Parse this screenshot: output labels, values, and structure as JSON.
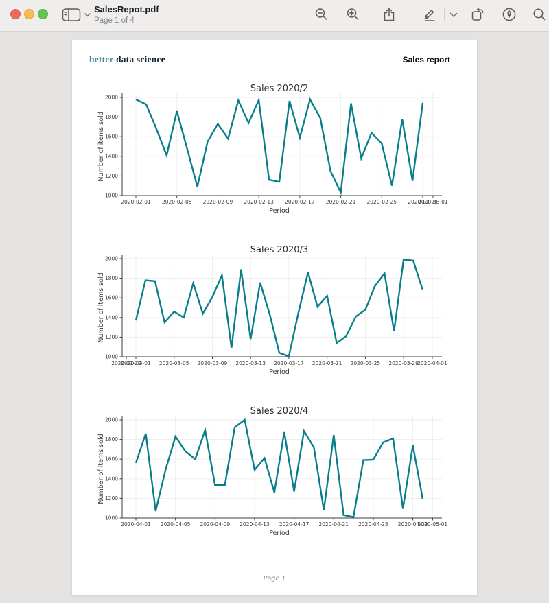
{
  "window": {
    "title": "SalesRepot.pdf",
    "subtitle": "Page 1 of 4"
  },
  "toolbar": {
    "icons": [
      "sidebar-toggle",
      "zoom-out",
      "zoom-in",
      "share",
      "markup-pencil",
      "markup-options-chevron",
      "rotate",
      "sign",
      "search"
    ]
  },
  "page": {
    "logo_better": "better",
    "logo_rest": "data science",
    "header_right": "Sales report",
    "footer": "Page 1"
  },
  "colors": {
    "line": "#087E8B",
    "logo_teal": "#4e849b",
    "logo_dark": "#10222e"
  },
  "chart_data": [
    {
      "type": "line",
      "title": "Sales 2020/2",
      "xlabel": "Period",
      "ylabel": "Number of items sold",
      "ylim": [
        1000,
        2000
      ],
      "yticks": [
        1000,
        1200,
        1400,
        1600,
        1800,
        2000
      ],
      "grid": true,
      "legend": "none",
      "line_color": "#087E8B",
      "x_start": "2020-02-01",
      "values": [
        1980,
        1930,
        1680,
        1410,
        1860,
        1480,
        1090,
        1550,
        1730,
        1580,
        1970,
        1740,
        1975,
        1160,
        1140,
        1965,
        1590,
        1980,
        1790,
        1250,
        1030,
        1940,
        1380,
        1640,
        1530,
        1100,
        1780,
        1150,
        1945
      ],
      "xticks": [
        {
          "label": "2020-02-01",
          "i": 0
        },
        {
          "label": "2020-02-05",
          "i": 4
        },
        {
          "label": "2020-02-09",
          "i": 8
        },
        {
          "label": "2020-02-13",
          "i": 12
        },
        {
          "label": "2020-02-17",
          "i": 16
        },
        {
          "label": "2020-02-21",
          "i": 20
        },
        {
          "label": "2020-02-25",
          "i": 24
        },
        {
          "label": "2020-02-29",
          "i": 28
        },
        {
          "label": "2020-03-01",
          "i": 29
        }
      ]
    },
    {
      "type": "line",
      "title": "Sales 2020/3",
      "xlabel": "Period",
      "ylabel": "Number of items sold",
      "ylim": [
        1000,
        2000
      ],
      "yticks": [
        1000,
        1200,
        1400,
        1600,
        1800,
        2000
      ],
      "grid": true,
      "legend": "none",
      "line_color": "#087E8B",
      "x_start": "2020-03-01",
      "values": [
        1370,
        1780,
        1770,
        1350,
        1460,
        1400,
        1750,
        1440,
        1610,
        1830,
        1090,
        1890,
        1180,
        1755,
        1430,
        1040,
        1005,
        1450,
        1860,
        1510,
        1620,
        1140,
        1210,
        1410,
        1480,
        1720,
        1850,
        1260,
        1990,
        1980,
        1680
      ],
      "xticks": [
        {
          "label": "2020-02-29",
          "i": -1
        },
        {
          "label": "2020-03-01",
          "i": 0
        },
        {
          "label": "2020-03-05",
          "i": 4
        },
        {
          "label": "2020-03-09",
          "i": 8
        },
        {
          "label": "2020-03-13",
          "i": 12
        },
        {
          "label": "2020-03-17",
          "i": 16
        },
        {
          "label": "2020-03-21",
          "i": 20
        },
        {
          "label": "2020-03-25",
          "i": 24
        },
        {
          "label": "2020-03-29",
          "i": 28
        },
        {
          "label": "2020-04-01",
          "i": 31
        }
      ]
    },
    {
      "type": "line",
      "title": "Sales 2020/4",
      "xlabel": "Period",
      "ylabel": "Number of items sold",
      "ylim": [
        1000,
        2000
      ],
      "yticks": [
        1000,
        1200,
        1400,
        1600,
        1800,
        2000
      ],
      "grid": true,
      "legend": "none",
      "line_color": "#087E8B",
      "x_start": "2020-04-01",
      "values": [
        1560,
        1860,
        1070,
        1490,
        1830,
        1680,
        1600,
        1895,
        1335,
        1335,
        1925,
        2000,
        1490,
        1610,
        1260,
        1875,
        1270,
        1885,
        1720,
        1080,
        1845,
        1030,
        1010,
        1590,
        1595,
        1770,
        1810,
        1095,
        1740,
        1190
      ],
      "xticks": [
        {
          "label": "2020-04-01",
          "i": 0
        },
        {
          "label": "2020-04-05",
          "i": 4
        },
        {
          "label": "2020-04-09",
          "i": 8
        },
        {
          "label": "2020-04-13",
          "i": 12
        },
        {
          "label": "2020-04-17",
          "i": 16
        },
        {
          "label": "2020-04-21",
          "i": 20
        },
        {
          "label": "2020-04-25",
          "i": 24
        },
        {
          "label": "2020-04-29",
          "i": 28
        },
        {
          "label": "2020-05-01",
          "i": 30
        }
      ]
    }
  ]
}
